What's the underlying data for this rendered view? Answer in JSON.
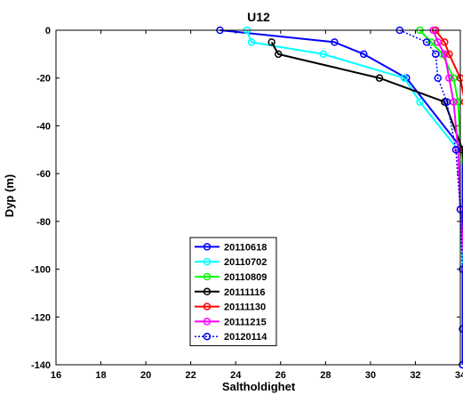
{
  "chart_data": {
    "type": "line",
    "title": "U12",
    "xlabel": "Saltholdighet",
    "ylabel": "Dyp (m)",
    "xlim": [
      16,
      34
    ],
    "ylim": [
      -140,
      0
    ],
    "xticks": [
      16,
      18,
      20,
      22,
      24,
      26,
      28,
      30,
      32,
      34
    ],
    "yticks": [
      0,
      -20,
      -40,
      -60,
      -80,
      -100,
      -120,
      -140
    ],
    "grid": false,
    "legend_position": "lower-center",
    "series": [
      {
        "name": "20110618",
        "color": "#0000ff",
        "dashed": false,
        "points": [
          [
            23.3,
            0
          ],
          [
            28.4,
            -5
          ],
          [
            29.7,
            -10
          ],
          [
            31.6,
            -20
          ],
          [
            34.1,
            -50
          ],
          [
            34.1,
            -100
          ],
          [
            34.1,
            -125
          ],
          [
            34.1,
            -140
          ]
        ]
      },
      {
        "name": "20110702",
        "color": "#00ffff",
        "dashed": false,
        "points": [
          [
            24.5,
            0
          ],
          [
            24.7,
            -5
          ],
          [
            27.9,
            -10
          ],
          [
            31.5,
            -20
          ],
          [
            32.2,
            -30
          ],
          [
            33.9,
            -50
          ],
          [
            34.0,
            -75
          ],
          [
            34.1,
            -100
          ]
        ]
      },
      {
        "name": "20110809",
        "color": "#00ff00",
        "dashed": false,
        "points": [
          [
            32.2,
            0
          ],
          [
            32.7,
            -5
          ],
          [
            33.2,
            -10
          ],
          [
            33.7,
            -20
          ],
          [
            33.9,
            -30
          ],
          [
            34.0,
            -50
          ],
          [
            34.6,
            -75
          ],
          [
            34.5,
            -100
          ]
        ]
      },
      {
        "name": "20111116",
        "color": "#000000",
        "dashed": false,
        "points": [
          [
            25.6,
            -5
          ],
          [
            25.9,
            -10
          ],
          [
            30.4,
            -20
          ],
          [
            33.3,
            -30
          ],
          [
            34.1,
            -50
          ],
          [
            34.3,
            -75
          ],
          [
            34.4,
            -100
          ]
        ]
      },
      {
        "name": "20111130",
        "color": "#ff0000",
        "dashed": false,
        "points": [
          [
            32.9,
            0
          ],
          [
            33.3,
            -5
          ],
          [
            33.5,
            -10
          ],
          [
            34.0,
            -20
          ],
          [
            34.2,
            -30
          ],
          [
            34.3,
            -50
          ],
          [
            34.4,
            -75
          ],
          [
            34.5,
            -100
          ]
        ]
      },
      {
        "name": "20111215",
        "color": "#ff00ff",
        "dashed": false,
        "points": [
          [
            32.8,
            0
          ],
          [
            33.0,
            -5
          ],
          [
            33.3,
            -10
          ],
          [
            33.5,
            -20
          ],
          [
            33.7,
            -30
          ],
          [
            33.9,
            -50
          ],
          [
            34.0,
            -75
          ],
          [
            34.2,
            -100
          ],
          [
            34.4,
            -125
          ],
          [
            34.5,
            -140
          ]
        ]
      },
      {
        "name": "20120114",
        "color": "#0000ff",
        "dashed": true,
        "points": [
          [
            31.3,
            0
          ],
          [
            32.5,
            -5
          ],
          [
            32.9,
            -10
          ],
          [
            33.0,
            -20
          ],
          [
            33.4,
            -30
          ],
          [
            33.8,
            -50
          ],
          [
            34.0,
            -75
          ],
          [
            34.1,
            -100
          ],
          [
            34.1,
            -125
          ],
          [
            34.1,
            -140
          ]
        ]
      }
    ]
  }
}
